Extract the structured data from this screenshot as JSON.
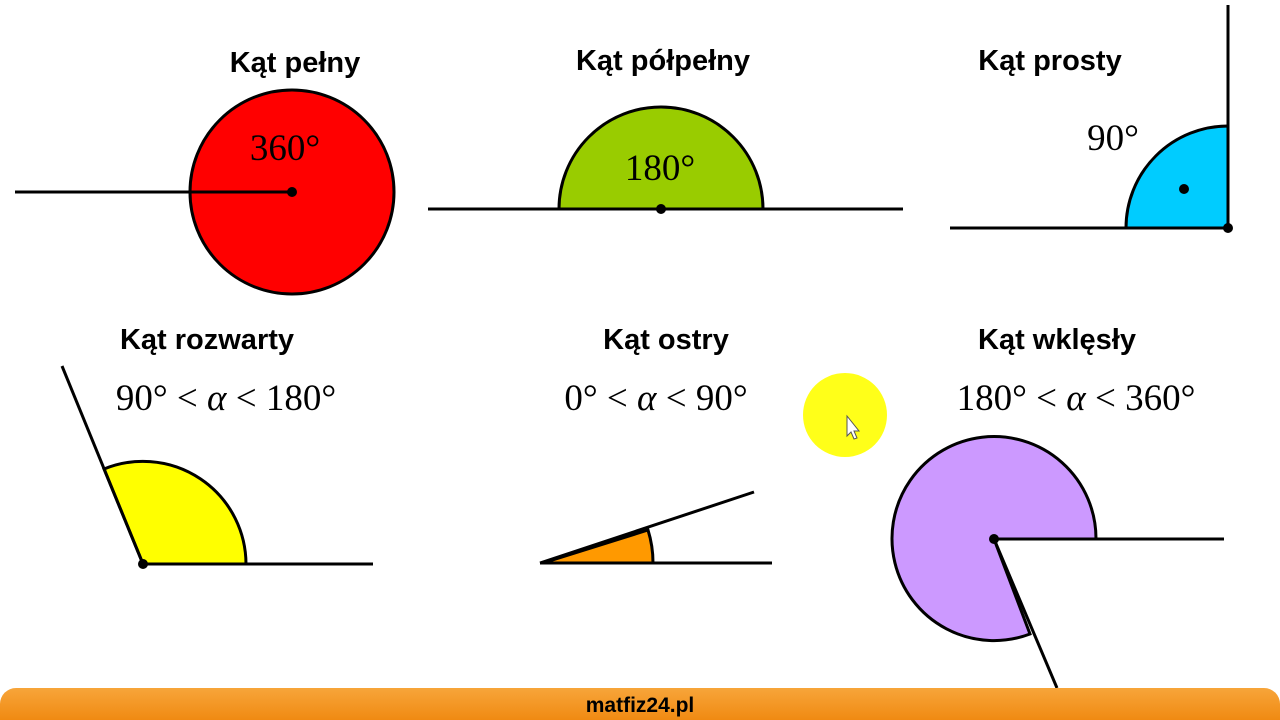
{
  "angles": [
    {
      "title": "Kąt pełny",
      "measure": "360°",
      "fill": "#ff0000"
    },
    {
      "title": "Kąt półpełny",
      "measure": "180°",
      "fill": "#99cc00"
    },
    {
      "title": "Kąt prosty",
      "measure": "90°",
      "fill": "#00ccff"
    },
    {
      "title": "Kąt rozwarty",
      "range": {
        "low": "90°",
        "op1": "<",
        "var": "α",
        "op2": "<",
        "high": "180°"
      },
      "fill": "#ffff00"
    },
    {
      "title": "Kąt ostry",
      "range": {
        "low": "0°",
        "op1": "<",
        "var": "α",
        "op2": "<",
        "high": "90°"
      },
      "fill": "#ff9900"
    },
    {
      "title": "Kąt wklęsły",
      "range": {
        "low": "180°",
        "op1": "<",
        "var": "α",
        "op2": "<",
        "high": "360°"
      },
      "fill": "#cc99ff"
    }
  ],
  "cursor_highlight_color": "#ffff00",
  "footer": {
    "site": "matfiz24.pl",
    "color": "#f39c1e"
  }
}
